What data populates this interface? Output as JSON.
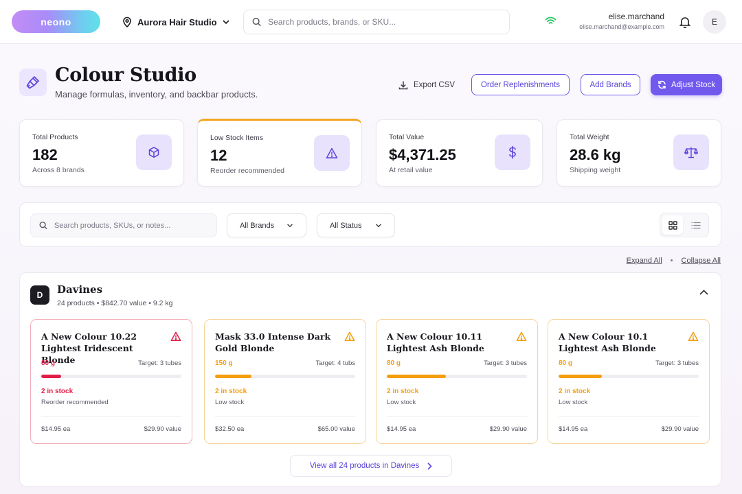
{
  "app": {
    "logo": "neono"
  },
  "topbar": {
    "location": "Aurora Hair Studio",
    "search_placeholder": "Search products, brands, or SKU...",
    "user_name": "elise.marchand",
    "user_email": "elise.marchand@example.com",
    "avatar_initial": "E"
  },
  "header": {
    "title": "Colour Studio",
    "subtitle": "Manage formulas, inventory, and backbar products.",
    "export_label": "Export CSV",
    "order_label": "Order Replenishments",
    "add_brands_label": "Add Brands",
    "adjust_label": "Adjust Stock"
  },
  "stats": [
    {
      "label": "Total Products",
      "value": "182",
      "note": "Across 8 brands",
      "icon": "box-icon"
    },
    {
      "label": "Low Stock Items",
      "value": "12",
      "note": "Reorder recommended",
      "icon": "warning-triangle-icon"
    },
    {
      "label": "Total Value",
      "value": "$4,371.25",
      "note": "At retail value",
      "icon": "dollar-icon"
    },
    {
      "label": "Total Weight",
      "value": "28.6 kg",
      "note": "Shipping weight",
      "icon": "scale-icon"
    }
  ],
  "filters": {
    "search_placeholder": "Search products, SKUs, or notes...",
    "brand_selected": "All Brands",
    "status_selected": "All Status"
  },
  "expand": {
    "expand_all": "Expand All",
    "separator": "•",
    "collapse_all": "Collapse All"
  },
  "brand": {
    "initial": "D",
    "name": "Davines",
    "meta": "24 products • $842.70 value • 9.2 kg",
    "view_all_label": "View all 24 products in Davines",
    "products": [
      {
        "name": "A New Colour 10.22 Lightest Iridescent Blonde",
        "weight": "80 g",
        "target": "Target: 3 tubes",
        "level": 0.14,
        "stock": "2 in stock",
        "status": "Reorder recommended",
        "unit_price": "$14.95 ea",
        "total_value": "$29.90 value",
        "severity": "critical"
      },
      {
        "name": "Mask 33.0  Intense Dark Gold Blonde",
        "weight": "150 g",
        "target": "Target: 4 tubs",
        "level": 0.26,
        "stock": "2 in stock",
        "status": "Low stock",
        "unit_price": "$32.50 ea",
        "total_value": "$65.00 value",
        "severity": "low"
      },
      {
        "name": "A New Colour 10.11 Lightest Ash Blonde",
        "weight": "80 g",
        "target": "Target: 3 tubes",
        "level": 0.42,
        "stock": "2 in stock",
        "status": "Low stock",
        "unit_price": "$14.95 ea",
        "total_value": "$29.90 value",
        "severity": "low"
      },
      {
        "name": "A New Colour 10.1 Lightest Ash Blonde",
        "weight": "80 g",
        "target": "Target: 3 tubes",
        "level": 0.31,
        "stock": "2 in stock",
        "status": "Low stock",
        "unit_price": "$14.95 ea",
        "total_value": "$29.90 value",
        "severity": "low"
      }
    ]
  },
  "colors": {
    "accent": "#7159ee",
    "critical": "#e11d48",
    "warning": "#f59e0b"
  }
}
